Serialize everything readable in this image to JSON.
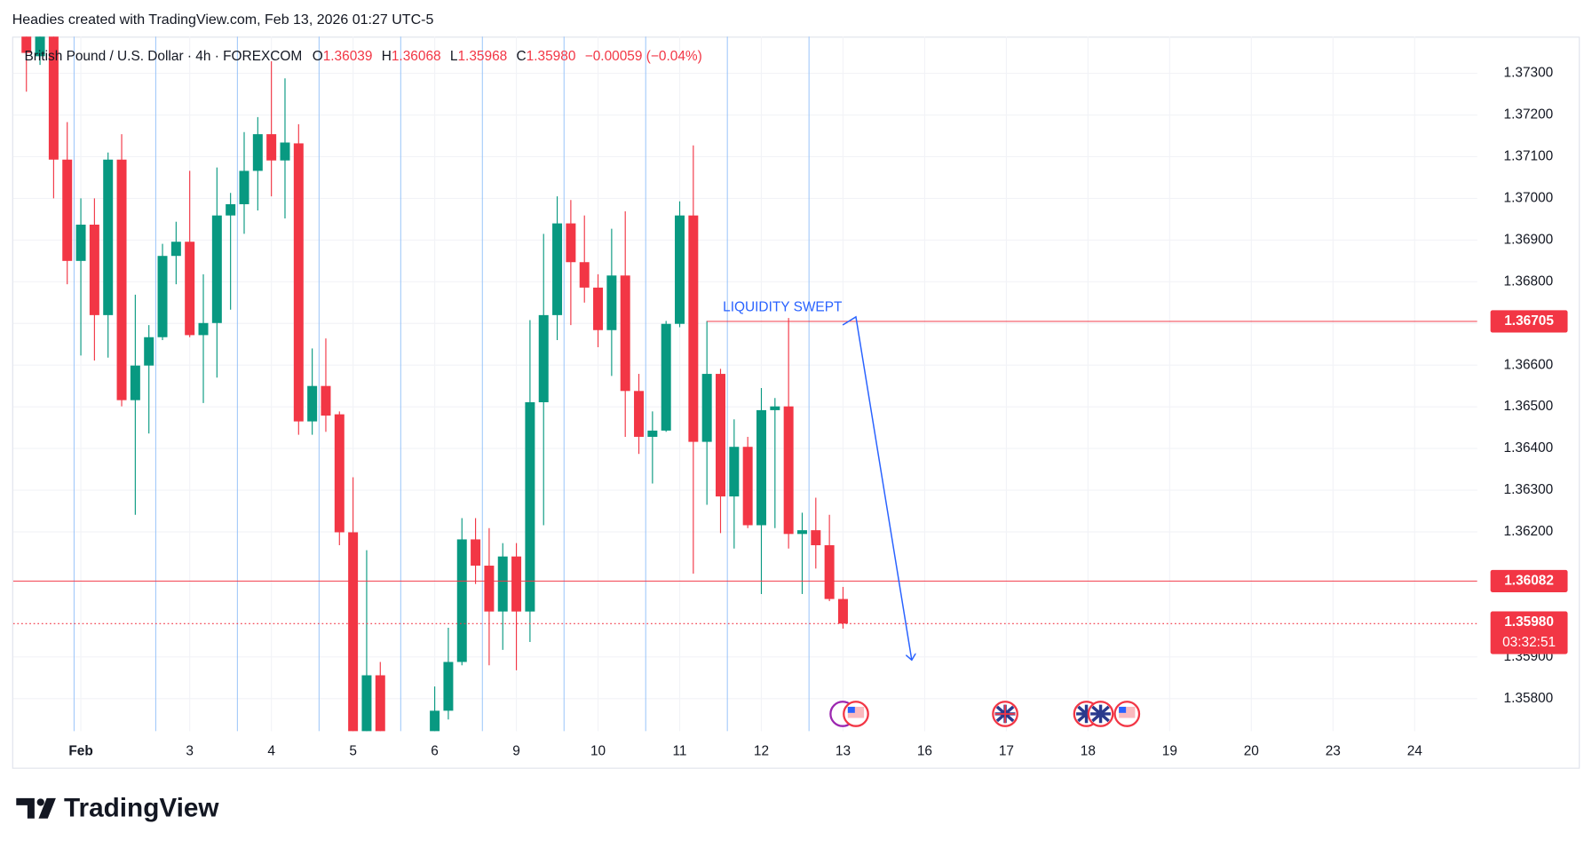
{
  "header": {
    "title": "Headies created with TradingView.com, Feb 13, 2026 01:27 UTC-5"
  },
  "footer": {
    "brand": "TradingView"
  },
  "chart_data": {
    "type": "candlestick",
    "legend": {
      "symbol": "British Pound / U.S. Dollar · 4h · FOREXCOM",
      "items": [
        {
          "key": "O",
          "value": "1.36039"
        },
        {
          "key": "H",
          "value": "1.36068"
        },
        {
          "key": "L",
          "value": "1.35968"
        },
        {
          "key": "C",
          "value": "1.35980"
        }
      ],
      "change": "−0.00059 (−0.04%)",
      "corner": "top-left"
    },
    "up_color": "#089981",
    "down_color": "#f23645",
    "x": [
      0,
      1,
      2,
      3,
      4,
      5,
      6,
      7,
      8,
      9,
      10,
      11,
      12,
      13,
      14,
      15,
      16,
      17,
      18,
      19,
      20,
      21,
      22,
      23,
      24,
      25,
      26,
      30,
      31,
      32,
      33,
      34,
      35,
      36,
      37,
      38,
      39,
      40,
      41,
      42,
      43,
      44,
      45,
      46,
      47,
      48,
      49,
      50,
      51,
      52,
      53,
      54,
      55,
      56,
      57,
      58,
      59,
      60
    ],
    "open": [
      1.374,
      1.37341,
      1.3741,
      1.37093,
      1.3685,
      1.36937,
      1.3672,
      1.37093,
      1.36516,
      1.36599,
      1.36667,
      1.36862,
      1.36896,
      1.36672,
      1.36701,
      1.36959,
      1.36986,
      1.37066,
      1.37154,
      1.37091,
      1.37132,
      1.36465,
      1.3655,
      1.36482,
      1.36199,
      1.3565,
      1.35856,
      1.357,
      1.35771,
      1.35888,
      1.36182,
      1.36119,
      1.36009,
      1.36141,
      1.36009,
      1.36511,
      1.3672,
      1.3694,
      1.36847,
      1.36786,
      1.36684,
      1.36815,
      1.36538,
      1.36428,
      1.36443,
      1.36699,
      1.36959,
      1.36416,
      1.36579,
      1.36285,
      1.36404,
      1.36216,
      1.36492,
      1.36501,
      1.36195,
      1.36204,
      1.36168,
      1.36039
    ],
    "high": [
      1.3742,
      1.3742,
      1.3742,
      1.37183,
      1.37,
      1.37,
      1.3711,
      1.37154,
      1.36769,
      1.36696,
      1.36891,
      1.36944,
      1.37066,
      1.36818,
      1.37074,
      1.37013,
      1.37159,
      1.37195,
      1.37329,
      1.37288,
      1.37178,
      1.3664,
      1.36664,
      1.36489,
      1.36331,
      1.36156,
      1.35888,
      1.35829,
      1.3597,
      1.36233,
      1.36233,
      1.36209,
      1.36173,
      1.36173,
      1.36708,
      1.36915,
      1.37005,
      1.36996,
      1.36959,
      1.36818,
      1.36927,
      1.36969,
      1.36579,
      1.36489,
      1.36706,
      1.36993,
      1.37127,
      1.36706,
      1.36591,
      1.3647,
      1.36428,
      1.36545,
      1.36521,
      1.36713,
      1.36246,
      1.36282,
      1.36241,
      1.36068
    ],
    "low": [
      1.37256,
      1.3732,
      1.37,
      1.36794,
      1.36623,
      1.36611,
      1.36618,
      1.36501,
      1.36241,
      1.36436,
      1.3666,
      1.36794,
      1.36667,
      1.36509,
      1.3657,
      1.36733,
      1.36915,
      1.36971,
      1.37005,
      1.36952,
      1.36433,
      1.36433,
      1.3644,
      1.36168,
      1.3555,
      1.356,
      1.356,
      1.3565,
      1.3575,
      1.3588,
      1.36075,
      1.3588,
      1.35917,
      1.35868,
      1.35936,
      1.36216,
      1.3666,
      1.36696,
      1.3675,
      1.36643,
      1.36574,
      1.36428,
      1.36387,
      1.36316,
      1.3644,
      1.36691,
      1.361,
      1.36265,
      1.36197,
      1.3616,
      1.36209,
      1.36051,
      1.36209,
      1.3616,
      1.36051,
      1.36112,
      1.36034,
      1.35968
    ],
    "close": [
      1.37349,
      1.3741,
      1.37093,
      1.3685,
      1.36937,
      1.3672,
      1.37093,
      1.36516,
      1.36599,
      1.36667,
      1.36862,
      1.36896,
      1.36672,
      1.36701,
      1.36959,
      1.36986,
      1.37066,
      1.37154,
      1.37091,
      1.37134,
      1.36465,
      1.3655,
      1.36479,
      1.36199,
      1.356,
      1.35856,
      1.3565,
      1.35771,
      1.35888,
      1.36182,
      1.36119,
      1.36009,
      1.36141,
      1.36009,
      1.36511,
      1.3672,
      1.3694,
      1.36847,
      1.36786,
      1.36684,
      1.36815,
      1.36538,
      1.36428,
      1.36443,
      1.36699,
      1.36959,
      1.36416,
      1.36579,
      1.36285,
      1.36404,
      1.36216,
      1.36492,
      1.36501,
      1.36195,
      1.36204,
      1.36168,
      1.36039,
      1.3598
    ],
    "xlim": [
      -0.97,
      106.6
    ],
    "ylim": [
      1.35722,
      1.37388
    ],
    "xticks": [
      {
        "value": 4,
        "label": "Feb"
      },
      {
        "value": 12,
        "label": "3"
      },
      {
        "value": 18,
        "label": "4"
      },
      {
        "value": 24,
        "label": "5"
      },
      {
        "value": 30,
        "label": "6"
      },
      {
        "value": 36,
        "label": "9"
      },
      {
        "value": 42,
        "label": "10"
      },
      {
        "value": 48,
        "label": "11"
      },
      {
        "value": 54,
        "label": "12"
      },
      {
        "value": 60,
        "label": "13"
      },
      {
        "value": 66,
        "label": "16"
      },
      {
        "value": 72,
        "label": "17"
      },
      {
        "value": 78,
        "label": "18"
      },
      {
        "value": 84,
        "label": "19"
      },
      {
        "value": 90,
        "label": "20"
      },
      {
        "value": 96,
        "label": "23"
      },
      {
        "value": 102,
        "label": "24"
      }
    ],
    "yticks": [
      {
        "value": 1.358,
        "label": "1.35800"
      },
      {
        "value": 1.359,
        "label": "1.35900"
      },
      {
        "value": 1.362,
        "label": "1.36200"
      },
      {
        "value": 1.363,
        "label": "1.36300"
      },
      {
        "value": 1.364,
        "label": "1.36400"
      },
      {
        "value": 1.365,
        "label": "1.36500"
      },
      {
        "value": 1.366,
        "label": "1.36600"
      },
      {
        "value": 1.367,
        "label": "1.36700"
      },
      {
        "value": 1.368,
        "label": "1.36800"
      },
      {
        "value": 1.369,
        "label": "1.36900"
      },
      {
        "value": 1.37,
        "label": "1.37000"
      },
      {
        "value": 1.371,
        "label": "1.37100"
      },
      {
        "value": 1.372,
        "label": "1.37200"
      },
      {
        "value": 1.373,
        "label": "1.37300"
      }
    ],
    "grid": true,
    "session_breaks": [
      3.5,
      9.5,
      15.5,
      21.5,
      27.5,
      33.5,
      39.5,
      45.5,
      51.5,
      57.5
    ],
    "levels": [
      {
        "value": 1.36705,
        "x_start": 50,
        "color": "#f23645",
        "style": "solid"
      },
      {
        "value": 1.36082,
        "x_start": -0.97,
        "color": "#f23645",
        "style": "solid"
      },
      {
        "value": 1.3598,
        "label": "1.35980",
        "countdown": "03:32:51",
        "x_start": -0.97,
        "color": "#f23645",
        "style": "dotted"
      }
    ],
    "annotation": "LIQUIDITY SWEPT"
  }
}
